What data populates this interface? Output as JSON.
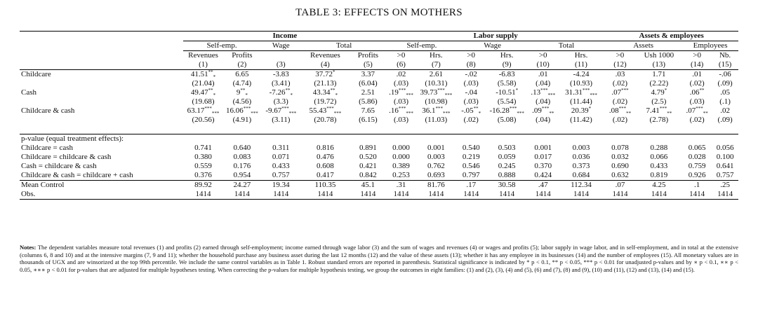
{
  "title": "TABLE 3: EFFECTS ON MOTHERS",
  "groups": [
    "Income",
    "Labor supply",
    "Assets & employees"
  ],
  "subgroups": [
    "Self-emp.",
    "Wage",
    "Total",
    "Self-emp.",
    "Wage",
    "Total",
    "Assets",
    "Employees"
  ],
  "var_labels": [
    "Revenues",
    "Profits",
    "",
    "Revenues",
    "Profits",
    ">0",
    "Hrs.",
    ">0",
    "Hrs.",
    ">0",
    "Hrs.",
    ">0",
    "Ush 1000",
    ">0",
    "Nb."
  ],
  "col_numbers": [
    "(1)",
    "(2)",
    "(3)",
    "(4)",
    "(5)",
    "(6)",
    "(7)",
    "(8)",
    "(9)",
    "(10)",
    "(11)",
    "(12)",
    "(13)",
    "(14)",
    "(15)"
  ],
  "coef_rows": [
    {
      "label": "Childcare",
      "est": [
        "41.51",
        "6.65",
        "-3.83",
        "37.72",
        "3.37",
        ".02",
        "2.61",
        "-.02",
        "-6.83",
        ".01",
        "-4.24",
        ".03",
        "1.71",
        ".01",
        "-.06"
      ],
      "stars": [
        "**",
        "",
        "",
        "*",
        "",
        "",
        "",
        "",
        "",
        "",
        "",
        "",
        "",
        "",
        ""
      ],
      "adj": [
        "*",
        "",
        "",
        "",
        "",
        "",
        "",
        "",
        "",
        "",
        "",
        "",
        "",
        "",
        ""
      ],
      "se": [
        "(21.04)",
        "(4.74)",
        "(3.41)",
        "(21.13)",
        "(6.04)",
        "(.03)",
        "(10.31)",
        "(.03)",
        "(5.58)",
        "(.04)",
        "(10.93)",
        "(.02)",
        "(2.22)",
        "(.02)",
        "(.09)"
      ]
    },
    {
      "label": "Cash",
      "est": [
        "49.47",
        "9",
        "-7.26",
        "43.34",
        "2.51",
        ".19",
        "39.73",
        "-.04",
        "-10.51",
        ".13",
        "31.31",
        ".07",
        "4.79",
        ".06",
        ".05"
      ],
      "stars": [
        "**",
        "**",
        "**",
        "**",
        "",
        "***",
        "***",
        "",
        "*",
        "***",
        "***",
        "***",
        "*",
        "**",
        ""
      ],
      "adj": [
        "*",
        "*",
        "*",
        "*",
        "",
        "***",
        "***",
        "",
        "",
        "***",
        "***",
        "",
        "",
        "",
        ""
      ],
      "se": [
        "(19.68)",
        "(4.56)",
        "(3.3)",
        "(19.72)",
        "(5.86)",
        "(.03)",
        "(10.98)",
        "(.03)",
        "(5.54)",
        "(.04)",
        "(11.44)",
        "(.02)",
        "(2.5)",
        "(.03)",
        "(.1)"
      ]
    },
    {
      "label": "Childcare & cash",
      "est": [
        "63.17",
        "16.06",
        "-9.67",
        "55.43",
        "7.65",
        ".16",
        "36.1",
        "-.05",
        "-16.28",
        ".09",
        "20.39",
        ".08",
        "7.41",
        ".07",
        ".02"
      ],
      "stars": [
        "***",
        "***",
        "***",
        "***",
        "",
        "***",
        "***",
        "**",
        "***",
        "***",
        "*",
        "***",
        "***",
        "***",
        ""
      ],
      "adj": [
        "***",
        "***",
        "***",
        "***",
        "",
        "***",
        "***",
        "*",
        "***",
        "**",
        "",
        "**",
        "**",
        "**",
        ""
      ],
      "se": [
        "(20.56)",
        "(4.91)",
        "(3.11)",
        "(20.78)",
        "(6.15)",
        "(.03)",
        "(11.03)",
        "(.02)",
        "(5.08)",
        "(.04)",
        "(11.42)",
        "(.02)",
        "(2.78)",
        "(.02)",
        "(.09)"
      ]
    }
  ],
  "pvalue_header": "p-value (equal treatment effects):",
  "pvalue_rows": [
    {
      "label": "Childcare = cash",
      "vals": [
        "0.741",
        "0.640",
        "0.311",
        "0.816",
        "0.891",
        "0.000",
        "0.001",
        "0.540",
        "0.503",
        "0.001",
        "0.003",
        "0.078",
        "0.288",
        "0.065",
        "0.056"
      ]
    },
    {
      "label": "Childcare = childcare & cash",
      "vals": [
        "0.380",
        "0.083",
        "0.071",
        "0.476",
        "0.520",
        "0.000",
        "0.003",
        "0.219",
        "0.059",
        "0.017",
        "0.036",
        "0.032",
        "0.066",
        "0.028",
        "0.100"
      ]
    },
    {
      "label": "Cash = childcare & cash",
      "vals": [
        "0.559",
        "0.176",
        "0.433",
        "0.608",
        "0.421",
        "0.389",
        "0.762",
        "0.546",
        "0.245",
        "0.370",
        "0.373",
        "0.690",
        "0.433",
        "0.759",
        "0.641"
      ]
    },
    {
      "label": "Childcare & cash = childcare + cash",
      "vals": [
        "0.376",
        "0.954",
        "0.757",
        "0.417",
        "0.842",
        "0.253",
        "0.693",
        "0.797",
        "0.888",
        "0.424",
        "0.684",
        "0.632",
        "0.819",
        "0.926",
        "0.757"
      ]
    }
  ],
  "summary_rows": [
    {
      "label": "Mean Control",
      "vals": [
        "89.92",
        "24.27",
        "19.34",
        "110.35",
        "45.1",
        ".31",
        "81.76",
        ".17",
        "30.58",
        ".47",
        "112.34",
        ".07",
        "4.25",
        ".1",
        ".25"
      ]
    },
    {
      "label": "Obs.",
      "vals": [
        "1414",
        "1414",
        "1414",
        "1414",
        "1414",
        "1414",
        "1414",
        "1414",
        "1414",
        "1414",
        "1414",
        "1414",
        "1414",
        "1414",
        "1414"
      ]
    }
  ],
  "notes": {
    "lead": "Notes:",
    "text": " The dependent variables measure total revenues (1) and profits (2) earned through self-employment; income earned through wage labor (3) and the sum of wages and revenues (4) or wages and profits (5); labor supply in wage labor, and in self-employment, and in total at the extensive (columns 6, 8 and 10) and at the intensive margins (7, 9 and 11); whether the household purchase any business asset during the last 12 months (12) and the value of these assets (13); whether it has any employee in its businesses (14) and the number of employees (15). All monetary values are in thousands of UGX and are winsorized at the top 99th percentile. We include the same control variables as in Table 1. Robust standard errors are reported in parenthesis. Statistical significance is indicated by * p < 0.1, ** p < 0.05, *** p < 0.01 for unadjusted p-values and by ∗ p < 0.1, ∗∗ p < 0.05, ∗∗∗ p < 0.01 for p-values that are adjusted for multiple hypotheses testing. When correcting the p-values for multiple hypothesis testing, we group the outcomes in eight families: (1) and (2), (3), (4) and (5), (6) and (7), (8) and (9), (10) and (11), (12) and (13), (14) and (15)."
  }
}
